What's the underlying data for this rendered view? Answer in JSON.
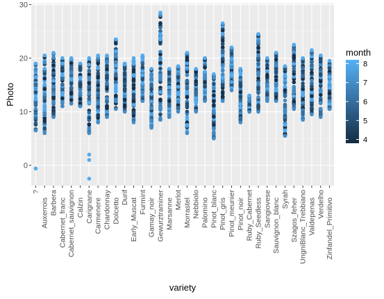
{
  "chart_data": {
    "type": "scatter",
    "xlabel": "variety",
    "ylabel": "Photo",
    "ylim": [
      -3.8,
      30.2
    ],
    "y_ticks": [
      0,
      10,
      20,
      30
    ],
    "grid": true,
    "legend_placement": "right",
    "legend": {
      "title": "month",
      "ticks": [
        4,
        5,
        6,
        7,
        8
      ],
      "range": [
        3.8,
        8.2
      ],
      "color_low": "#132B43",
      "color_high": "#56B1F7"
    },
    "categories": [
      "?",
      "Auxerrois",
      "Barbera",
      "Cabernet_franc",
      "Cabernet_sauvignon",
      "Calzin",
      "Carignane",
      "Carmenere",
      "Chardonnay",
      "Dolcetto",
      "Durif",
      "Early_Muscat",
      "Furmint",
      "Gamay_noir",
      "Gewurztraminer",
      "Marsanne",
      "Merlot",
      "Morrastel",
      "Nebbiolo",
      "Palomino",
      "Pinot_blanc",
      "Pinot_gris",
      "Pinot_meunier",
      "Pinot_noir",
      "Ruby_Cabernet",
      "Ruby_Seedless",
      "Sangiovese",
      "Sauvignon_blanc",
      "Syrah",
      "Szagos_feher",
      "UngniBlanc_Trebbiano",
      "Valdepenas",
      "Verdelho",
      "Zinfandel_Primitivo"
    ],
    "ranges": [
      {
        "variety": "?",
        "min": 6.5,
        "max": 19.0,
        "outliers": [
          {
            "y": -0.6,
            "month": 8
          }
        ]
      },
      {
        "variety": "Auxerrois",
        "min": 6.0,
        "max": 20.5,
        "outliers": []
      },
      {
        "variety": "Barbera",
        "min": 9.0,
        "max": 21.0,
        "outliers": []
      },
      {
        "variety": "Cabernet_franc",
        "min": 11.0,
        "max": 20.0,
        "outliers": []
      },
      {
        "variety": "Cabernet_sauvignon",
        "min": 11.5,
        "max": 20.0,
        "outliers": []
      },
      {
        "variety": "Calzin",
        "min": 11.0,
        "max": 19.0,
        "outliers": []
      },
      {
        "variety": "Carignane",
        "min": 6.0,
        "max": 20.0,
        "outliers": [
          {
            "y": 2.0,
            "month": 8
          },
          {
            "y": 1.0,
            "month": 8
          },
          {
            "y": -2.5,
            "month": 8
          }
        ]
      },
      {
        "variety": "Carmenere",
        "min": 8.0,
        "max": 20.5,
        "outliers": []
      },
      {
        "variety": "Chardonnay",
        "min": 9.0,
        "max": 20.5,
        "outliers": []
      },
      {
        "variety": "Dolcetto",
        "min": 10.5,
        "max": 23.5,
        "outliers": []
      },
      {
        "variety": "Durif",
        "min": 10.0,
        "max": 19.0,
        "outliers": []
      },
      {
        "variety": "Early_Muscat",
        "min": 8.0,
        "max": 20.0,
        "outliers": []
      },
      {
        "variety": "Furmint",
        "min": 12.0,
        "max": 20.5,
        "outliers": []
      },
      {
        "variety": "Gamay_noir",
        "min": 7.0,
        "max": 18.0,
        "outliers": []
      },
      {
        "variety": "Gewurztraminer",
        "min": 8.5,
        "max": 28.5,
        "outliers": []
      },
      {
        "variety": "Marsanne",
        "min": 9.0,
        "max": 18.0,
        "outliers": []
      },
      {
        "variety": "Merlot",
        "min": 10.0,
        "max": 18.5,
        "outliers": []
      },
      {
        "variety": "Morrastel",
        "min": 6.0,
        "max": 21.0,
        "outliers": []
      },
      {
        "variety": "Nebbiolo",
        "min": 10.0,
        "max": 18.0,
        "outliers": []
      },
      {
        "variety": "Palomino",
        "min": 12.0,
        "max": 20.0,
        "outliers": []
      },
      {
        "variety": "Pinot_blanc",
        "min": 5.0,
        "max": 17.0,
        "outliers": []
      },
      {
        "variety": "Pinot_gris",
        "min": 12.0,
        "max": 26.5,
        "outliers": []
      },
      {
        "variety": "Pinot_meunier",
        "min": 14.0,
        "max": 22.0,
        "outliers": []
      },
      {
        "variety": "Pinot_noir",
        "min": 8.0,
        "max": 18.0,
        "outliers": []
      },
      {
        "variety": "Ruby_Cabernet",
        "min": 10.0,
        "max": 13.0,
        "outliers": []
      },
      {
        "variety": "Ruby_Seedless",
        "min": 10.0,
        "max": 24.5,
        "outliers": []
      },
      {
        "variety": "Sangiovese",
        "min": 12.0,
        "max": 20.0,
        "outliers": []
      },
      {
        "variety": "Sauvignon_blanc",
        "min": 12.0,
        "max": 21.0,
        "outliers": []
      },
      {
        "variety": "Syrah",
        "min": 5.5,
        "max": 18.5,
        "outliers": []
      },
      {
        "variety": "Szagos_feher",
        "min": 10.5,
        "max": 22.5,
        "outliers": []
      },
      {
        "variety": "UngniBlanc_Trebbiano",
        "min": 8.5,
        "max": 20.0,
        "outliers": []
      },
      {
        "variety": "Valdepenas",
        "min": 9.5,
        "max": 21.5,
        "outliers": []
      },
      {
        "variety": "Verdelho",
        "min": 9.0,
        "max": 20.5,
        "outliers": []
      },
      {
        "variety": "Zinfandel_Primitivo",
        "min": 10.5,
        "max": 19.5,
        "outliers": []
      }
    ]
  }
}
